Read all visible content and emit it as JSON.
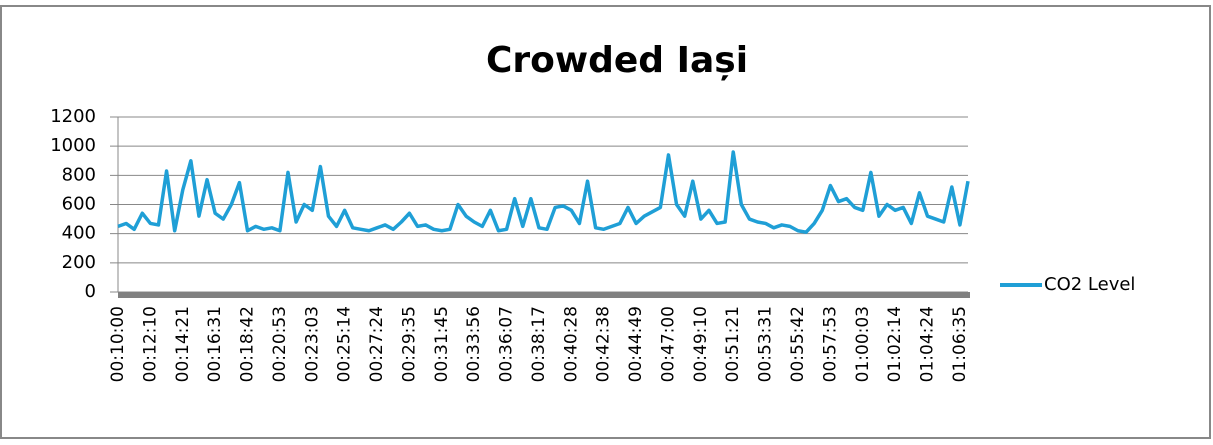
{
  "chart_data": {
    "type": "line",
    "title": "Crowded Iași",
    "categories": [
      "00:10:00",
      null,
      null,
      null,
      "00:12:10",
      null,
      null,
      null,
      "00:14:21",
      null,
      null,
      null,
      "00:16:31",
      null,
      null,
      null,
      "00:18:42",
      null,
      null,
      null,
      "00:20:53",
      null,
      null,
      null,
      "00:23:03",
      null,
      null,
      null,
      "00:25:14",
      null,
      null,
      null,
      "00:27:24",
      null,
      null,
      null,
      "00:29:35",
      null,
      null,
      null,
      "00:31:45",
      null,
      null,
      null,
      "00:33:56",
      null,
      null,
      null,
      "00:36:07",
      null,
      null,
      null,
      "00:38:17",
      null,
      null,
      null,
      "00:40:28",
      null,
      null,
      null,
      "00:42:38",
      null,
      null,
      null,
      "00:44:49",
      null,
      null,
      null,
      "00:47:00",
      null,
      null,
      null,
      "00:49:10",
      null,
      null,
      null,
      "00:51:21",
      null,
      null,
      null,
      "00:53:31",
      null,
      null,
      null,
      "00:55:42",
      null,
      null,
      null,
      "00:57:53",
      null,
      null,
      null,
      "01:00:03",
      null,
      null,
      null,
      "01:02:14",
      null,
      null,
      null,
      "01:04:24",
      null,
      null,
      null,
      "01:06:35",
      null
    ],
    "series": [
      {
        "name": "CO2 Level",
        "color": "#1f9fd6",
        "values": [
          450,
          470,
          430,
          540,
          470,
          460,
          830,
          420,
          700,
          900,
          520,
          770,
          540,
          500,
          600,
          750,
          420,
          450,
          430,
          440,
          420,
          820,
          480,
          600,
          560,
          860,
          520,
          450,
          560,
          440,
          430,
          420,
          440,
          460,
          430,
          480,
          540,
          450,
          460,
          430,
          420,
          430,
          600,
          520,
          480,
          450,
          560,
          420,
          430,
          640,
          450,
          640,
          440,
          430,
          580,
          590,
          560,
          470,
          760,
          440,
          430,
          450,
          470,
          580,
          470,
          520,
          550,
          580,
          940,
          600,
          520,
          760,
          500,
          560,
          470,
          480,
          960,
          600,
          500,
          480,
          470,
          440,
          460,
          450,
          420,
          410,
          470,
          560,
          730,
          620,
          640,
          580,
          560,
          820,
          520,
          600,
          560,
          580,
          470,
          680,
          520,
          500,
          480,
          720,
          460,
          760
        ]
      }
    ],
    "ylim": [
      0,
      1200
    ],
    "yticks": [
      0,
      200,
      400,
      600,
      800,
      1000,
      1200
    ],
    "grid": true,
    "legend": "right"
  }
}
